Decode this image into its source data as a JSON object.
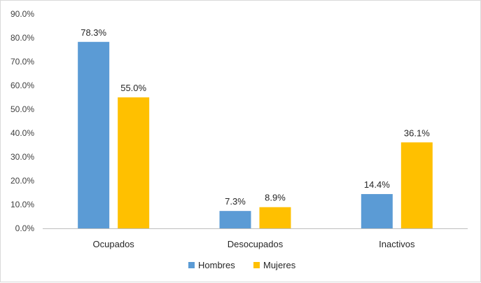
{
  "chart_data": {
    "type": "bar",
    "categories": [
      "Ocupados",
      "Desocupados",
      "Inactivos"
    ],
    "series": [
      {
        "name": "Hombres",
        "values": [
          78.3,
          7.3,
          14.4
        ],
        "labels": [
          "78.3%",
          "7.3%",
          "14.4%"
        ],
        "color": "#5B9BD5"
      },
      {
        "name": "Mujeres",
        "values": [
          55.0,
          8.9,
          36.1
        ],
        "labels": [
          "55.0%",
          "8.9%",
          "36.1%"
        ],
        "color": "#FFC000"
      }
    ],
    "yticks": [
      "0.0%",
      "10.0%",
      "20.0%",
      "30.0%",
      "40.0%",
      "50.0%",
      "60.0%",
      "70.0%",
      "80.0%",
      "90.0%"
    ],
    "ylim": [
      0,
      90
    ],
    "title": "",
    "xlabel": "",
    "ylabel": "",
    "grid": false,
    "legend_position": "bottom"
  }
}
